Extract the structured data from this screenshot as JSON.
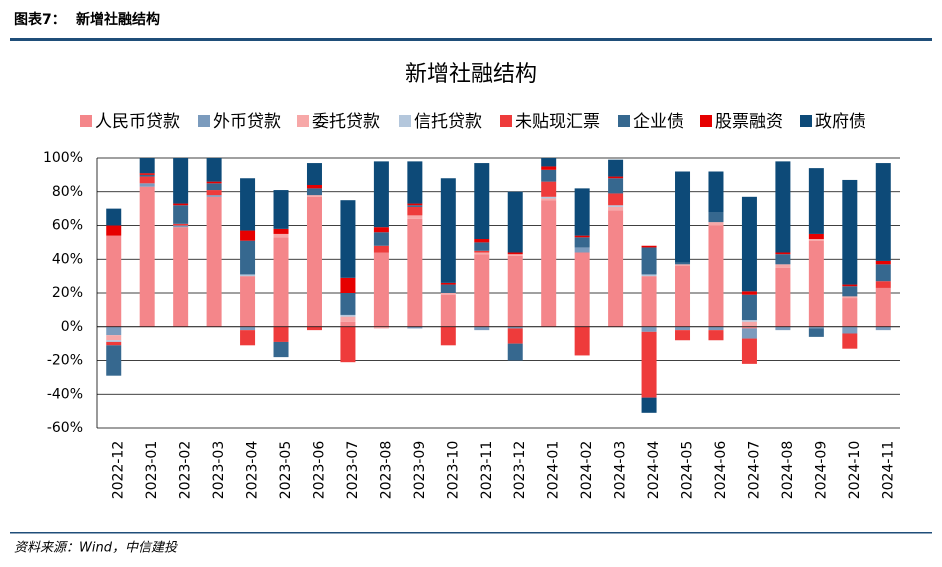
{
  "header": {
    "label": "图表7：",
    "title": "新增社融结构"
  },
  "source": "资料来源：Wind，中信建投",
  "chart_data": {
    "type": "stacked_bar",
    "title": "新增社融结构",
    "categories": [
      "2022-12",
      "2023-01",
      "2023-02",
      "2023-03",
      "2023-04",
      "2023-05",
      "2023-06",
      "2023-07",
      "2023-08",
      "2023-09",
      "2023-10",
      "2023-11",
      "2023-12",
      "2024-01",
      "2024-02",
      "2024-03",
      "2024-04",
      "2024-05",
      "2024-06",
      "2024-07",
      "2024-08",
      "2024-09",
      "2024-10",
      "2024-11"
    ],
    "series": [
      {
        "name": "人民币贷款",
        "color": "#f4868a",
        "values": [
          54,
          83,
          59,
          77,
          30,
          53,
          77,
          3,
          44,
          64,
          19,
          43,
          42,
          75,
          44,
          69,
          30,
          36,
          60,
          -1,
          35,
          51,
          17,
          23
        ]
      },
      {
        "name": "外币贷款",
        "color": "#7b9bbd",
        "values": [
          -5,
          2,
          1,
          1,
          -2,
          0,
          0,
          0,
          0,
          -1,
          0,
          -2,
          -1,
          0,
          3,
          0,
          -3,
          -2,
          -2,
          -6,
          -2,
          -1,
          -4,
          -2
        ]
      },
      {
        "name": "委托贷款",
        "color": "#f7a8a8",
        "values": [
          -3,
          0,
          0,
          0,
          0,
          2,
          1,
          3,
          -1,
          2,
          1,
          1,
          1,
          1,
          0,
          2,
          0,
          1,
          2,
          3,
          2,
          1,
          1,
          0
        ]
      },
      {
        "name": "信托贷款",
        "color": "#b4c7dc",
        "values": [
          -1,
          0,
          0,
          0,
          1,
          0,
          0,
          1,
          0,
          0,
          0,
          0,
          0,
          1,
          0,
          1,
          1,
          0,
          0,
          1,
          0,
          0,
          0,
          0
        ]
      },
      {
        "name": "未贴现汇票",
        "color": "#ee3b3b",
        "values": [
          -2,
          4,
          1,
          3,
          -9,
          -9,
          -2,
          -21,
          4,
          5,
          -11,
          1,
          -9,
          9,
          -17,
          7,
          -39,
          -6,
          -6,
          -15,
          0,
          0,
          -9,
          4
        ]
      },
      {
        "name": "企业债",
        "color": "#36688f",
        "values": [
          -18,
          1,
          11,
          4,
          20,
          -9,
          4,
          13,
          8,
          1,
          5,
          5,
          -10,
          7,
          6,
          9,
          16,
          1,
          6,
          15,
          6,
          -5,
          6,
          10
        ]
      },
      {
        "name": "股票融资",
        "color": "#e60000",
        "values": [
          6,
          1,
          1,
          1,
          6,
          3,
          2,
          9,
          3,
          1,
          1,
          2,
          1,
          2,
          1,
          1,
          1,
          0,
          0,
          2,
          1,
          3,
          1,
          2
        ]
      },
      {
        "name": "政府债",
        "color": "#0d4a78",
        "values": [
          10,
          9,
          27,
          14,
          31,
          23,
          13,
          46,
          39,
          25,
          62,
          45,
          36,
          5,
          28,
          10,
          -9,
          54,
          24,
          56,
          54,
          39,
          62,
          58
        ]
      }
    ],
    "ylim": [
      -60,
      100
    ],
    "yticks": [
      {
        "value": -60,
        "label": "-60%"
      },
      {
        "value": -40,
        "label": "-40%"
      },
      {
        "value": -20,
        "label": "-20%"
      },
      {
        "value": 0,
        "label": "0%"
      },
      {
        "value": 20,
        "label": "20%"
      },
      {
        "value": 40,
        "label": "40%"
      },
      {
        "value": 60,
        "label": "60%"
      },
      {
        "value": 80,
        "label": "80%"
      },
      {
        "value": 100,
        "label": "100%"
      }
    ],
    "grid": true
  }
}
